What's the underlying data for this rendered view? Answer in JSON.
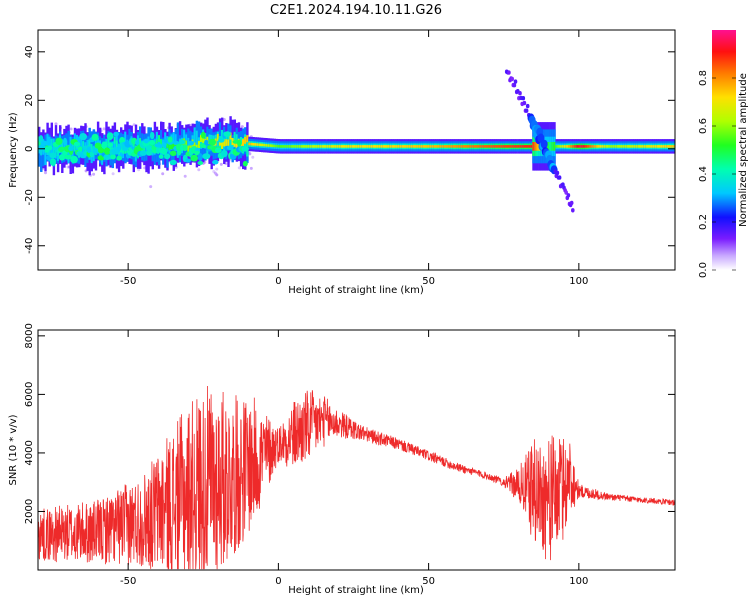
{
  "title": "C2E1.2024.194.10.11.G26",
  "colors": {
    "snr_line": "#ee2a2a",
    "axes": "#000000"
  },
  "chart_data": [
    {
      "type": "heatmap",
      "xlabel": "Height of straight line (km)",
      "ylabel": "Frequency (Hz)",
      "xlim": [
        -80,
        132
      ],
      "ylim": [
        -50,
        49
      ],
      "xticks": [
        -50,
        0,
        50,
        100
      ],
      "yticks": [
        -40,
        -20,
        0,
        20,
        40
      ],
      "colorbar": {
        "label": "Normalized spectral amplitude",
        "ticks": [
          "0.0",
          "0.2",
          "0.4",
          "0.6",
          "0.8"
        ],
        "range": [
          0,
          1
        ],
        "colormap": "rainbow-white-to-magenta"
      },
      "ridge": [
        [
          -80,
          0
        ],
        [
          -40,
          0.5
        ],
        [
          -20,
          3
        ],
        [
          0,
          1
        ],
        [
          30,
          1
        ],
        [
          80,
          1
        ],
        [
          90,
          1
        ],
        [
          132,
          1
        ]
      ],
      "ridge_strength": [
        [
          -80,
          0.35
        ],
        [
          -40,
          0.45
        ],
        [
          -30,
          0.6
        ],
        [
          -10,
          0.75
        ],
        [
          0,
          0.55
        ],
        [
          20,
          0.7
        ],
        [
          50,
          0.75
        ],
        [
          70,
          0.85
        ],
        [
          84,
          0.9
        ],
        [
          90,
          0.45
        ],
        [
          100,
          0.95
        ],
        [
          110,
          0.6
        ],
        [
          132,
          0.75
        ]
      ],
      "streak": {
        "x": [
          76,
          98
        ],
        "y": [
          33,
          -24
        ]
      }
    },
    {
      "type": "line",
      "xlabel": "Height of straight line (km)",
      "ylabel": "SNR (10 * v/v)",
      "xlim": [
        -80,
        132
      ],
      "ylim": [
        0,
        8200
      ],
      "xticks": [
        -50,
        0,
        50,
        100
      ],
      "yticks": [
        2000,
        4000,
        6000,
        8000
      ],
      "series": [
        {
          "color": "#ee2a2a",
          "envelope_x": [
            -80,
            -60,
            -45,
            -35,
            -28,
            -22,
            -15,
            -8,
            0,
            5,
            10,
            15,
            20,
            25,
            30,
            40,
            50,
            60,
            70,
            75,
            80,
            85,
            90,
            95,
            97,
            100,
            110,
            120,
            132
          ],
          "envelope_mean": [
            1200,
            1300,
            1700,
            2300,
            2800,
            3000,
            3200,
            3700,
            4300,
            4600,
            4900,
            5100,
            5000,
            4800,
            4600,
            4300,
            3900,
            3500,
            3200,
            3000,
            2900,
            2700,
            2400,
            2800,
            3200,
            2700,
            2500,
            2400,
            2300
          ],
          "envelope_spread": [
            900,
            1100,
            1600,
            2600,
            3200,
            3400,
            2800,
            2200,
            600,
            1200,
            1300,
            900,
            500,
            350,
            250,
            200,
            180,
            150,
            120,
            150,
            600,
            1800,
            2200,
            1800,
            1400,
            250,
            120,
            100,
            100
          ]
        }
      ]
    }
  ]
}
